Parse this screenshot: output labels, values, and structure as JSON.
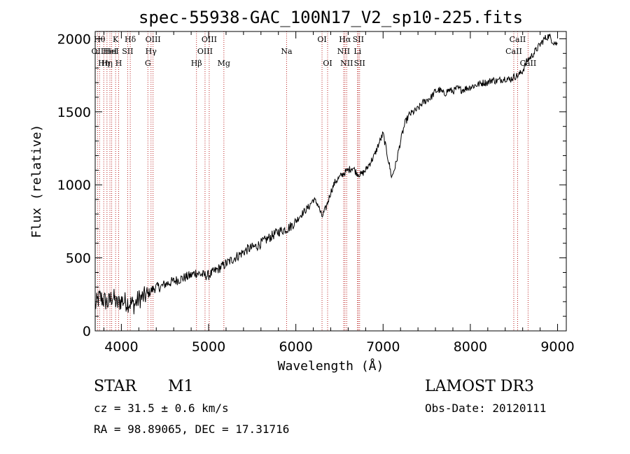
{
  "chart_data": {
    "type": "line",
    "title": "spec-55938-GAC_100N17_V2_sp10-225.fits",
    "xlabel": "Wavelength (Å)",
    "ylabel": "Flux (relative)",
    "xlim": [
      3700,
      9100
    ],
    "ylim": [
      0,
      2050
    ],
    "xticks": [
      4000,
      5000,
      6000,
      7000,
      8000,
      9000
    ],
    "yticks": [
      0,
      500,
      1000,
      1500,
      2000
    ],
    "grid": false,
    "series": [
      {
        "name": "flux",
        "x": [
          3700,
          3750,
          3800,
          3850,
          3900,
          3950,
          4000,
          4050,
          4100,
          4150,
          4200,
          4250,
          4300,
          4350,
          4400,
          4450,
          4500,
          4550,
          4600,
          4650,
          4700,
          4750,
          4800,
          4850,
          4900,
          4950,
          5000,
          5050,
          5100,
          5150,
          5200,
          5250,
          5300,
          5350,
          5400,
          5450,
          5500,
          5550,
          5600,
          5650,
          5700,
          5750,
          5800,
          5850,
          5900,
          5950,
          6000,
          6050,
          6100,
          6150,
          6200,
          6250,
          6300,
          6350,
          6400,
          6450,
          6500,
          6550,
          6600,
          6650,
          6700,
          6750,
          6800,
          6850,
          6900,
          6950,
          7000,
          7050,
          7100,
          7150,
          7200,
          7250,
          7300,
          7350,
          7400,
          7450,
          7500,
          7550,
          7600,
          7650,
          7700,
          7750,
          7800,
          7850,
          7900,
          7950,
          8000,
          8050,
          8100,
          8150,
          8200,
          8250,
          8300,
          8350,
          8400,
          8450,
          8500,
          8550,
          8600,
          8650,
          8700,
          8750,
          8800,
          8850,
          8900,
          8950,
          9000
        ],
        "y": [
          170,
          230,
          210,
          190,
          240,
          180,
          210,
          200,
          190,
          180,
          220,
          230,
          250,
          280,
          300,
          300,
          320,
          330,
          340,
          350,
          360,
          370,
          380,
          400,
          390,
          380,
          380,
          400,
          420,
          440,
          460,
          480,
          500,
          520,
          540,
          560,
          570,
          580,
          600,
          620,
          640,
          660,
          680,
          690,
          700,
          720,
          750,
          790,
          820,
          850,
          900,
          870,
          780,
          850,
          950,
          1020,
          1050,
          1080,
          1100,
          1120,
          1080,
          1070,
          1100,
          1150,
          1200,
          1280,
          1350,
          1200,
          1050,
          1150,
          1300,
          1420,
          1480,
          1500,
          1520,
          1560,
          1580,
          1600,
          1640,
          1650,
          1620,
          1650,
          1640,
          1660,
          1650,
          1660,
          1670,
          1680,
          1690,
          1700,
          1700,
          1720,
          1710,
          1720,
          1730,
          1720,
          1740,
          1750,
          1780,
          1850,
          1880,
          1920,
          1960,
          2000,
          2020,
          1980,
          1960
        ]
      }
    ],
    "lines": [
      {
        "wl": 3727,
        "label": "OII",
        "row": 2
      },
      {
        "wl": 3750,
        "label": "Hθ",
        "row": 1
      },
      {
        "wl": 3798,
        "label": "Hη",
        "row": 3
      },
      {
        "wl": 3835,
        "label": "Hη",
        "row": 3
      },
      {
        "wl": 3869,
        "label": "HeI",
        "row": 2
      },
      {
        "wl": 3889,
        "label": "HeI",
        "row": 2
      },
      {
        "wl": 3934,
        "label": "K",
        "row": 1
      },
      {
        "wl": 3969,
        "label": "H",
        "row": 3
      },
      {
        "wl": 4072,
        "label": "SII",
        "row": 2
      },
      {
        "wl": 4102,
        "label": "Hδ",
        "row": 1
      },
      {
        "wl": 4304,
        "label": "G",
        "row": 3
      },
      {
        "wl": 4340,
        "label": "Hγ",
        "row": 2
      },
      {
        "wl": 4363,
        "label": "OIII",
        "row": 1
      },
      {
        "wl": 4861,
        "label": "Hβ",
        "row": 3
      },
      {
        "wl": 4959,
        "label": "OIII",
        "row": 2
      },
      {
        "wl": 5007,
        "label": "OIII",
        "row": 1
      },
      {
        "wl": 5175,
        "label": "Mg",
        "row": 3
      },
      {
        "wl": 5894,
        "label": "Na",
        "row": 2
      },
      {
        "wl": 6300,
        "label": "OI",
        "row": 1
      },
      {
        "wl": 6364,
        "label": "OI",
        "row": 3
      },
      {
        "wl": 6548,
        "label": "NII",
        "row": 2
      },
      {
        "wl": 6563,
        "label": "Hα",
        "row": 1
      },
      {
        "wl": 6583,
        "label": "NII",
        "row": 3
      },
      {
        "wl": 6707,
        "label": "Li",
        "row": 2
      },
      {
        "wl": 6716,
        "label": "SII",
        "row": 1
      },
      {
        "wl": 6731,
        "label": "SII",
        "row": 3
      },
      {
        "wl": 8498,
        "label": "CaII",
        "row": 2
      },
      {
        "wl": 8542,
        "label": "CaII",
        "row": 1
      },
      {
        "wl": 8662,
        "label": "CaII",
        "row": 3
      }
    ],
    "colors": {
      "axis": "#000000",
      "series": "#000000",
      "lines": "#bb2222"
    }
  },
  "info": {
    "object_class": "STAR",
    "subclass": "M1",
    "survey": "LAMOST DR3",
    "redshift": "cz = 31.5 ± 0.6 km/s",
    "obs_date": "Obs-Date: 20120111",
    "coords": "RA =  98.89065, DEC =  17.31716"
  }
}
